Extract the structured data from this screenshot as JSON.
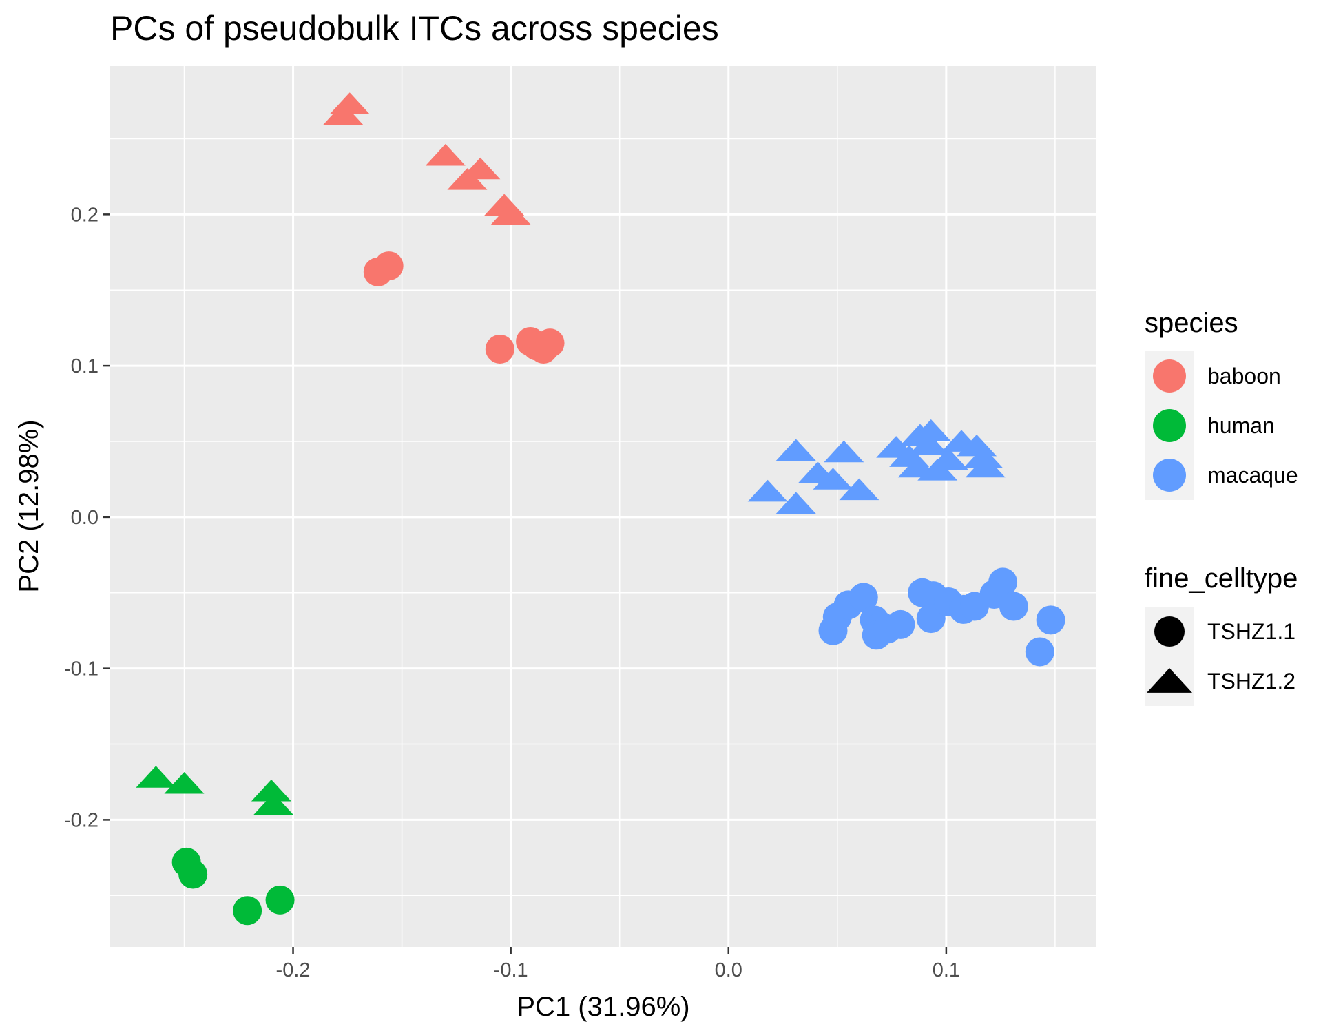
{
  "chart_data": {
    "type": "scatter",
    "title": "PCs of pseudobulk ITCs across species",
    "xlabel": "PC1 (31.96%)",
    "ylabel": "PC2 (12.98%)",
    "xlim": [
      -0.284,
      0.169
    ],
    "ylim": [
      -0.284,
      0.298
    ],
    "x_ticks": [
      -0.2,
      -0.1,
      0.0,
      0.1
    ],
    "x_tick_labels": [
      "-0.2",
      "-0.1",
      "0.0",
      "0.1"
    ],
    "y_ticks": [
      -0.2,
      -0.1,
      0.0,
      0.1,
      0.2
    ],
    "y_tick_labels": [
      "-0.2",
      "-0.1",
      "0.0",
      "0.1",
      "0.2"
    ],
    "grid": true,
    "legend_position": "right",
    "legends": [
      {
        "title": "species",
        "entries": [
          {
            "label": "baboon",
            "color": "#F8766D"
          },
          {
            "label": "human",
            "color": "#00BA38"
          },
          {
            "label": "macaque",
            "color": "#619CFF"
          }
        ]
      },
      {
        "title": "fine_celltype",
        "entries": [
          {
            "label": "TSHZ1.1",
            "shape": "circle"
          },
          {
            "label": "TSHZ1.2",
            "shape": "triangle"
          }
        ]
      }
    ],
    "series": [
      {
        "species": "baboon",
        "celltype": "TSHZ1.1",
        "points": [
          [
            -0.161,
            0.162
          ],
          [
            -0.156,
            0.166
          ],
          [
            -0.105,
            0.111
          ],
          [
            -0.091,
            0.116
          ],
          [
            -0.088,
            0.113
          ],
          [
            -0.085,
            0.111
          ],
          [
            -0.082,
            0.115
          ]
        ]
      },
      {
        "species": "baboon",
        "celltype": "TSHZ1.2",
        "points": [
          [
            -0.177,
            0.266
          ],
          [
            -0.174,
            0.273
          ],
          [
            -0.13,
            0.239
          ],
          [
            -0.114,
            0.23
          ],
          [
            -0.12,
            0.223
          ],
          [
            -0.103,
            0.206
          ],
          [
            -0.1,
            0.2
          ]
        ]
      },
      {
        "species": "human",
        "celltype": "TSHZ1.1",
        "points": [
          [
            -0.249,
            -0.228
          ],
          [
            -0.246,
            -0.236
          ],
          [
            -0.221,
            -0.26
          ],
          [
            -0.206,
            -0.253
          ]
        ]
      },
      {
        "species": "human",
        "celltype": "TSHZ1.2",
        "points": [
          [
            -0.263,
            -0.172
          ],
          [
            -0.25,
            -0.176
          ],
          [
            -0.21,
            -0.181
          ],
          [
            -0.209,
            -0.19
          ]
        ]
      },
      {
        "species": "macaque",
        "celltype": "TSHZ1.1",
        "points": [
          [
            0.048,
            -0.075
          ],
          [
            0.05,
            -0.066
          ],
          [
            0.055,
            -0.058
          ],
          [
            0.062,
            -0.053
          ],
          [
            0.067,
            -0.068
          ],
          [
            0.07,
            -0.072
          ],
          [
            0.068,
            -0.078
          ],
          [
            0.073,
            -0.074
          ],
          [
            0.079,
            -0.071
          ],
          [
            0.089,
            -0.05
          ],
          [
            0.094,
            -0.052
          ],
          [
            0.093,
            -0.067
          ],
          [
            0.101,
            -0.056
          ],
          [
            0.108,
            -0.061
          ],
          [
            0.113,
            -0.059
          ],
          [
            0.122,
            -0.051
          ],
          [
            0.126,
            -0.043
          ],
          [
            0.131,
            -0.059
          ],
          [
            0.143,
            -0.089
          ],
          [
            0.148,
            -0.068
          ]
        ]
      },
      {
        "species": "macaque",
        "celltype": "TSHZ1.2",
        "points": [
          [
            0.018,
            0.017
          ],
          [
            0.031,
            0.044
          ],
          [
            0.031,
            0.009
          ],
          [
            0.041,
            0.029
          ],
          [
            0.048,
            0.025
          ],
          [
            0.053,
            0.043
          ],
          [
            0.06,
            0.018
          ],
          [
            0.077,
            0.046
          ],
          [
            0.083,
            0.04
          ],
          [
            0.088,
            0.054
          ],
          [
            0.092,
            0.048
          ],
          [
            0.093,
            0.057
          ],
          [
            0.087,
            0.033
          ],
          [
            0.096,
            0.031
          ],
          [
            0.101,
            0.038
          ],
          [
            0.107,
            0.05
          ],
          [
            0.114,
            0.047
          ],
          [
            0.117,
            0.039
          ],
          [
            0.118,
            0.033
          ]
        ]
      }
    ]
  }
}
